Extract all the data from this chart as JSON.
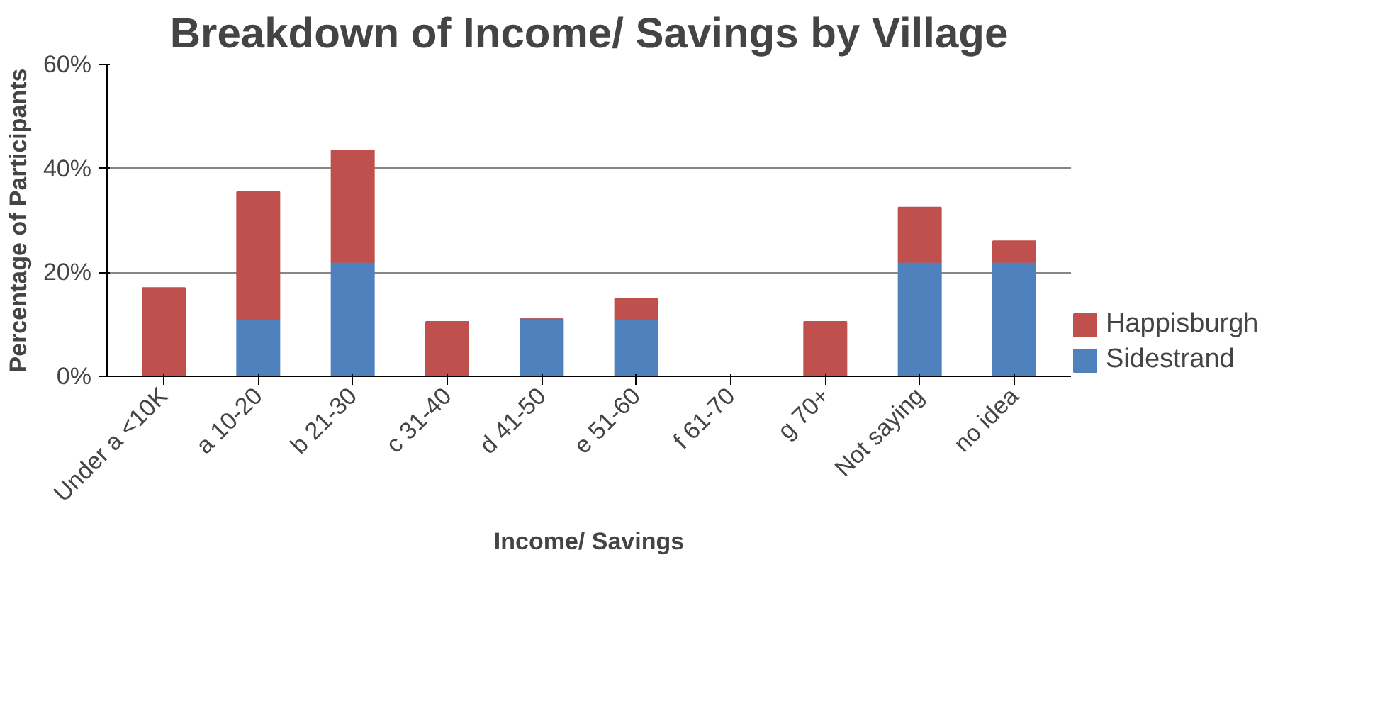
{
  "chart_data": {
    "type": "bar",
    "stacked": true,
    "title": "Breakdown of Income/ Savings by Village",
    "xlabel": "Income/ Savings",
    "ylabel": "Percentage of Participants",
    "categories": [
      "Under a <10K",
      "a 10-20",
      "b 21-30",
      "c 31-40",
      "d 41-50",
      "e 51-60",
      "f 61-70",
      "g 70+",
      "Not saying",
      "no idea"
    ],
    "series": [
      {
        "name": "Sidestrand",
        "color": "#4f81bd",
        "values": [
          0,
          11,
          22,
          0,
          11,
          11,
          0,
          0,
          22,
          22
        ]
      },
      {
        "name": "Happisburgh",
        "color": "#c0504d",
        "values": [
          17,
          24.5,
          21.5,
          10.5,
          0,
          4,
          0,
          10.5,
          10.5,
          4
        ]
      }
    ],
    "ylim": [
      0,
      60
    ],
    "yticks": [
      {
        "value": 0,
        "label": "0%"
      },
      {
        "value": 20,
        "label": "20%"
      },
      {
        "value": 40,
        "label": "40%"
      },
      {
        "value": 60,
        "label": "60%"
      }
    ],
    "grid": "y",
    "legend": "bottom right"
  }
}
